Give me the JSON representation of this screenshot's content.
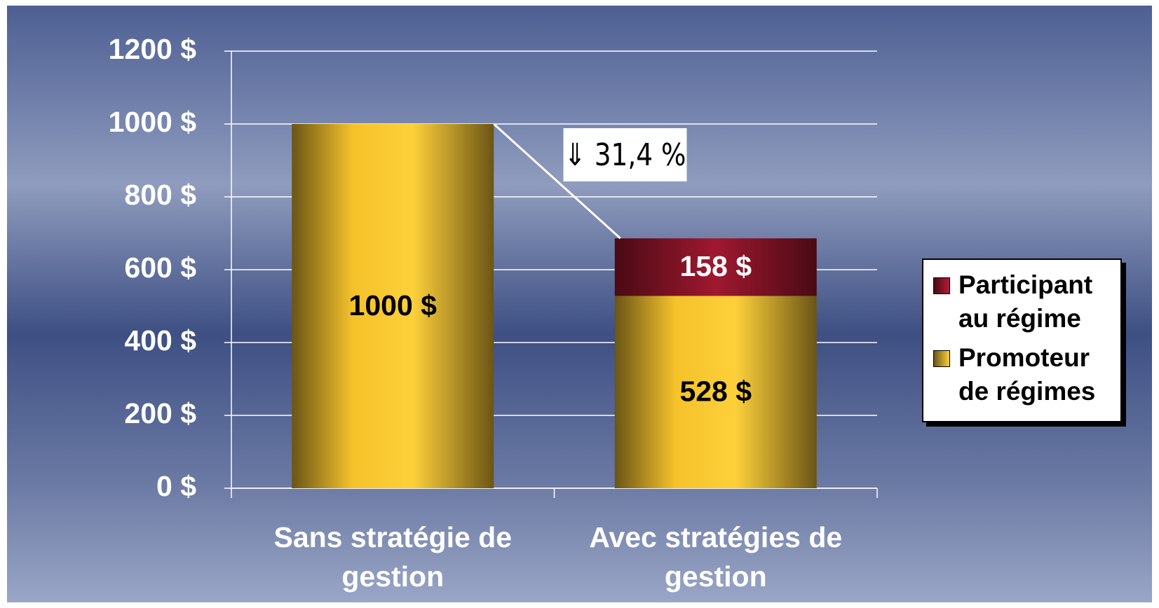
{
  "chart_data": {
    "type": "stacked_bar",
    "categories": [
      "Sans stratégie de gestion",
      "Avec stratégies de gestion"
    ],
    "series": [
      {
        "name": "Promoteur de régimes",
        "color": "#f5c22a",
        "values": [
          1000,
          528
        ],
        "value_labels": [
          "1000 $",
          "528 $"
        ]
      },
      {
        "name": "Participant au régime",
        "color": "#9c1730",
        "values": [
          null,
          158
        ],
        "value_labels": [
          null,
          "158 $"
        ]
      }
    ],
    "ylim": [
      0,
      1200
    ],
    "yticks": [
      {
        "value": 0,
        "label": "0 $"
      },
      {
        "value": 200,
        "label": "200 $"
      },
      {
        "value": 400,
        "label": "400 $"
      },
      {
        "value": 600,
        "label": "600 $"
      },
      {
        "value": 800,
        "label": "800 $"
      },
      {
        "value": 1000,
        "label": "1000 $"
      },
      {
        "value": 1200,
        "label": "1200 $"
      }
    ],
    "grid": true,
    "annotation": "⇓ 31,4 %",
    "legend": "right"
  }
}
